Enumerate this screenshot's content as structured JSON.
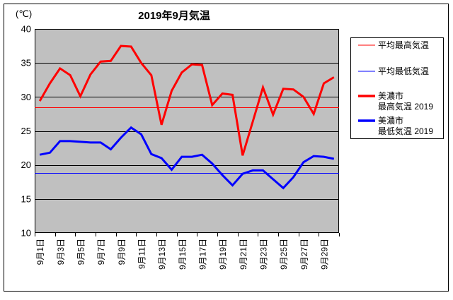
{
  "chart_data": {
    "type": "line",
    "title": "2019年9月気温",
    "unit_label": "(℃)",
    "ylim": [
      10,
      40
    ],
    "ytick_interval": 5,
    "ytick_labels": [
      "40",
      "35",
      "30",
      "25",
      "20",
      "15",
      "10"
    ],
    "x_days": 30,
    "xtick_labels": [
      "9月1日",
      "9月3日",
      "9月5日",
      "9月7日",
      "9月9日",
      "9月11日",
      "9月13日",
      "9月15日",
      "9月17日",
      "9月19日",
      "9月21日",
      "9月23日",
      "9月25日",
      "9月27日",
      "9月29日"
    ],
    "grid": true,
    "grid_color": "#000000",
    "plot_bg": "#c0c0c0",
    "legend_position": "right",
    "reference_lines": [
      {
        "name": "平均最高気温",
        "value": 28.5,
        "color": "#ff0000",
        "width": 1
      },
      {
        "name": "平均最低気温",
        "value": 18.8,
        "color": "#0000ff",
        "width": 1
      }
    ],
    "series": [
      {
        "name": "美濃市 最高気温2019",
        "color": "#ff0000",
        "width": 3,
        "values": [
          29.4,
          32.0,
          34.2,
          33.2,
          30.1,
          33.3,
          35.2,
          35.3,
          37.5,
          37.4,
          35.0,
          33.2,
          25.9,
          30.9,
          33.6,
          34.8,
          34.7,
          28.8,
          30.5,
          30.3,
          21.4,
          26.4,
          31.4,
          27.4,
          31.2,
          31.1,
          30.0,
          27.5,
          32.0,
          32.9
        ]
      },
      {
        "name": "美濃市 最低気温2019",
        "color": "#0000ff",
        "width": 3,
        "values": [
          21.5,
          21.8,
          23.5,
          23.5,
          23.4,
          23.3,
          23.3,
          22.3,
          24.0,
          25.5,
          24.5,
          21.6,
          21.0,
          19.3,
          21.2,
          21.2,
          21.5,
          20.2,
          18.5,
          17.0,
          18.7,
          19.2,
          19.2,
          17.9,
          16.6,
          18.2,
          20.4,
          21.3,
          21.2,
          20.9
        ]
      }
    ],
    "legend": [
      {
        "label_lines": [
          "平均最高気温"
        ],
        "color": "#ff0000",
        "thickness": 1
      },
      {
        "label_lines": [
          "平均最低気温"
        ],
        "color": "#0000ff",
        "thickness": 1
      },
      {
        "label_lines": [
          "美濃市",
          "最高気温 2019"
        ],
        "color": "#ff0000",
        "thickness": 3.5
      },
      {
        "label_lines": [
          "美濃市",
          "最低気温 2019"
        ],
        "color": "#0000ff",
        "thickness": 3.5
      }
    ]
  }
}
